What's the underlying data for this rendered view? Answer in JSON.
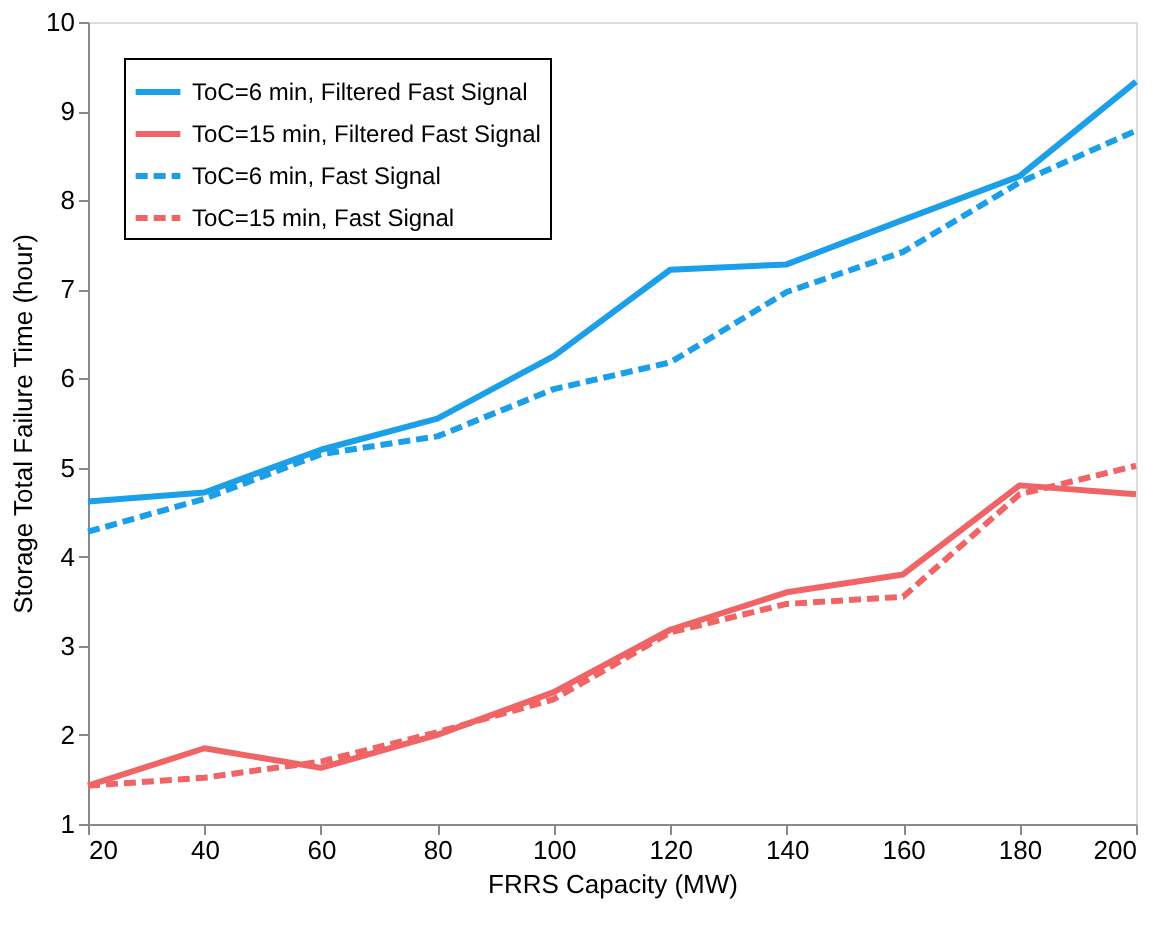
{
  "chart_data": {
    "type": "line",
    "xlabel": "FRRS Capacity (MW)",
    "ylabel": "Storage Total Failure Time (hour)",
    "x": [
      20,
      40,
      60,
      80,
      100,
      120,
      140,
      160,
      180,
      200
    ],
    "xlim": [
      20,
      200
    ],
    "xticks": [
      20,
      40,
      60,
      80,
      100,
      120,
      140,
      160,
      180,
      200
    ],
    "ylim": [
      1,
      10
    ],
    "yticks": [
      1,
      2,
      3,
      4,
      5,
      6,
      7,
      8,
      9,
      10
    ],
    "grid": false,
    "legend": "top left",
    "marker": "none",
    "series": [
      {
        "name": "ToC=6 min, Filtered Fast Signal",
        "color": "#1a9fe8",
        "line_style": "solid",
        "values": [
          4.62,
          4.72,
          5.2,
          5.55,
          6.25,
          7.22,
          7.28,
          7.78,
          8.27,
          9.33
        ]
      },
      {
        "name": "ToC=15 min, Filtered Fast Signal",
        "color": "#f06466",
        "line_style": "solid",
        "values": [
          1.43,
          1.85,
          1.63,
          2.0,
          2.48,
          3.18,
          3.6,
          3.8,
          4.8,
          4.7
        ]
      },
      {
        "name": "ToC=6 min, Fast Signal",
        "color": "#1a9fe8",
        "line_style": "dashed",
        "values": [
          4.28,
          4.65,
          5.15,
          5.35,
          5.88,
          6.18,
          6.97,
          7.42,
          8.2,
          8.78
        ]
      },
      {
        "name": "ToC=15 min, Fast Signal",
        "color": "#f06466",
        "line_style": "dashed",
        "values": [
          1.43,
          1.52,
          1.7,
          2.03,
          2.4,
          3.15,
          3.47,
          3.55,
          4.7,
          5.02
        ]
      }
    ]
  }
}
